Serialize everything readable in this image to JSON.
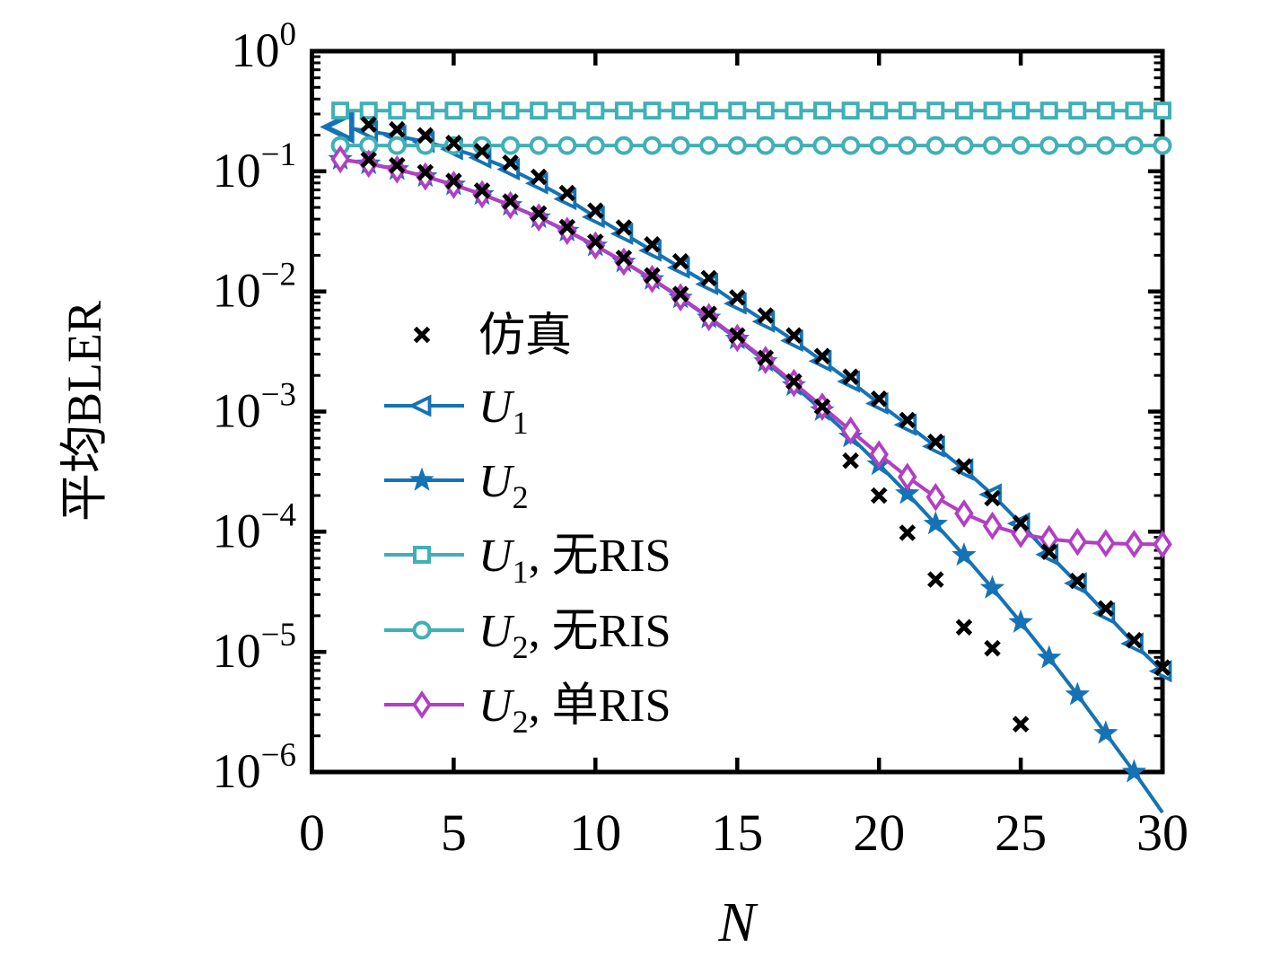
{
  "figure": {
    "background": "#ffffff"
  },
  "chart_data": {
    "type": "line",
    "title": "",
    "xlabel": "N",
    "ylabel": "平均BLER",
    "xlim": [
      0,
      30
    ],
    "yscale": "log",
    "ylim": [
      1e-06,
      1
    ],
    "grid": false,
    "legend_position": "inside center-left, no frame",
    "x_ticks": [
      0,
      5,
      10,
      15,
      20,
      25,
      30
    ],
    "y_tick_exponents": [
      0,
      -1,
      -2,
      -3,
      -4,
      -5,
      -6
    ],
    "colors": {
      "blue": "#1573b5",
      "teal": "#3fb0b6",
      "magenta": "#b23fc3",
      "black": "#000000"
    },
    "series": [
      {
        "id": "u2",
        "label": "U2",
        "color": "#1573b5",
        "marker": "star",
        "line": true,
        "x": [
          1,
          2,
          3,
          4,
          5,
          6,
          7,
          8,
          9,
          10,
          11,
          12,
          13,
          14,
          15,
          16,
          17,
          18,
          19,
          20,
          21,
          22,
          23,
          24,
          25,
          26,
          27,
          28,
          29,
          30
        ],
        "y": [
          0.126,
          0.1156,
          0.1036,
          0.0905,
          0.0771,
          0.0642,
          0.0521,
          0.0412,
          0.0318,
          0.024,
          0.0176,
          0.0126,
          0.00884,
          0.00603,
          0.00402,
          0.00261,
          0.00165,
          0.00102,
          0.000616,
          0.000362,
          0.000208,
          0.000116,
          6.36e-05,
          3.39e-05,
          1.76e-05,
          8.9e-06,
          4.4e-06,
          2.1e-06,
          1e-06,
          4.6e-07
        ]
      },
      {
        "id": "u1",
        "label": "U1",
        "color": "#1573b5",
        "marker": "triangle-left-open",
        "line": true,
        "x": [
          1,
          2,
          3,
          4,
          5,
          6,
          7,
          8,
          9,
          10,
          11,
          12,
          13,
          14,
          15,
          16,
          17,
          18,
          19,
          20,
          21,
          22,
          23,
          24,
          25,
          26,
          27,
          28,
          29,
          30
        ],
        "y": [
          0.234,
          0.216,
          0.197,
          0.176,
          0.153,
          0.13,
          0.104,
          0.0794,
          0.0589,
          0.0417,
          0.0302,
          0.0219,
          0.0158,
          0.0115,
          0.00794,
          0.00562,
          0.00389,
          0.00263,
          0.00178,
          0.00117,
          0.000776,
          0.000513,
          0.000331,
          0.000204,
          0.000117,
          6.46e-05,
          3.72e-05,
          2.09e-05,
          1.17e-05,
          6.9e-06
        ]
      },
      {
        "id": "u1_no_ris",
        "label": "U1, no RIS",
        "color": "#3fb0b6",
        "marker": "square-open",
        "line": true,
        "x": [
          1,
          2,
          3,
          4,
          5,
          6,
          7,
          8,
          9,
          10,
          11,
          12,
          13,
          14,
          15,
          16,
          17,
          18,
          19,
          20,
          21,
          22,
          23,
          24,
          25,
          26,
          27,
          28,
          29,
          30
        ],
        "y": [
          0.32,
          0.32,
          0.32,
          0.32,
          0.32,
          0.32,
          0.32,
          0.32,
          0.32,
          0.32,
          0.32,
          0.32,
          0.32,
          0.32,
          0.32,
          0.32,
          0.32,
          0.32,
          0.32,
          0.32,
          0.32,
          0.32,
          0.32,
          0.32,
          0.32,
          0.32,
          0.32,
          0.32,
          0.32,
          0.32
        ]
      },
      {
        "id": "u2_no_ris",
        "label": "U2, no RIS",
        "color": "#3fb0b6",
        "marker": "circle-open",
        "line": true,
        "x": [
          1,
          2,
          3,
          4,
          5,
          6,
          7,
          8,
          9,
          10,
          11,
          12,
          13,
          14,
          15,
          16,
          17,
          18,
          19,
          20,
          21,
          22,
          23,
          24,
          25,
          26,
          27,
          28,
          29,
          30
        ],
        "y": [
          0.164,
          0.164,
          0.164,
          0.164,
          0.164,
          0.164,
          0.164,
          0.164,
          0.164,
          0.164,
          0.164,
          0.164,
          0.164,
          0.164,
          0.164,
          0.164,
          0.164,
          0.164,
          0.164,
          0.164,
          0.164,
          0.164,
          0.164,
          0.164,
          0.164,
          0.164,
          0.164,
          0.164,
          0.164,
          0.164
        ]
      },
      {
        "id": "u2_single_ris",
        "label": "U2, single RIS",
        "color": "#b23fc3",
        "marker": "thin-diamond-open",
        "line": true,
        "x": [
          1,
          2,
          3,
          4,
          5,
          6,
          7,
          8,
          9,
          10,
          11,
          12,
          13,
          14,
          15,
          16,
          17,
          18,
          19,
          20,
          21,
          22,
          23,
          24,
          25,
          26,
          27,
          28,
          29,
          30
        ],
        "y": [
          0.126,
          0.1157,
          0.1037,
          0.0906,
          0.0772,
          0.0643,
          0.0522,
          0.0413,
          0.0319,
          0.0241,
          0.0177,
          0.0127,
          0.00892,
          0.00611,
          0.0041,
          0.00269,
          0.00173,
          0.0011,
          0.000694,
          0.00044,
          0.000286,
          0.000194,
          0.000142,
          0.000112,
          9.56e-05,
          8.69e-05,
          8.24e-05,
          8.01e-05,
          7.9e-05,
          7.85e-05
        ]
      },
      {
        "id": "sim_u1",
        "label": "simulation of U1",
        "color": "#000000",
        "marker": "x",
        "line": false,
        "x": [
          2,
          3,
          4,
          5,
          6,
          7,
          8,
          9,
          10,
          11,
          12,
          13,
          14,
          15,
          16,
          17,
          18,
          19,
          20,
          21,
          22,
          23,
          24,
          25,
          26,
          27,
          28,
          29,
          30
        ],
        "y": [
          0.245,
          0.223,
          0.199,
          0.172,
          0.147,
          0.118,
          0.09,
          0.066,
          0.047,
          0.034,
          0.0246,
          0.0178,
          0.0129,
          0.0089,
          0.0063,
          0.0043,
          0.0029,
          0.00195,
          0.00128,
          0.00085,
          0.00056,
          0.00035,
          0.00019,
          0.000118,
          6.8e-05,
          3.9e-05,
          2.3e-05,
          1.25e-05,
          7.4e-06
        ]
      },
      {
        "id": "sim_u2",
        "label": "simulation of U2",
        "color": "#000000",
        "marker": "x",
        "line": false,
        "x": [
          2,
          3,
          4,
          5,
          6,
          7,
          8,
          9,
          10,
          11,
          12,
          13,
          14,
          15,
          16,
          17,
          18,
          19,
          20,
          21,
          22,
          23,
          24,
          25
        ],
        "y": [
          0.125,
          0.112,
          0.098,
          0.083,
          0.069,
          0.056,
          0.0445,
          0.0343,
          0.0259,
          0.019,
          0.0136,
          0.0095,
          0.0065,
          0.0043,
          0.0028,
          0.00178,
          0.0011,
          0.00039,
          0.0002,
          9.8e-05,
          4e-05,
          1.6e-05,
          1.07e-05,
          2.5e-06
        ]
      }
    ],
    "legend": [
      {
        "marker": "x",
        "color": "#000000",
        "line": false,
        "label_parts": [
          {
            "t": "仿真",
            "s": "n"
          }
        ]
      },
      {
        "marker": "triangle-left-open",
        "color": "#1573b5",
        "line": true,
        "label_parts": [
          {
            "t": "U",
            "s": "i"
          },
          {
            "t": "1",
            "s": "sub"
          }
        ]
      },
      {
        "marker": "star",
        "color": "#1573b5",
        "line": true,
        "label_parts": [
          {
            "t": "U",
            "s": "i"
          },
          {
            "t": "2",
            "s": "sub"
          }
        ]
      },
      {
        "marker": "square-open",
        "color": "#3fb0b6",
        "line": true,
        "label_parts": [
          {
            "t": "U",
            "s": "i"
          },
          {
            "t": "1",
            "s": "sub"
          },
          {
            "t": ", 无RIS",
            "s": "n"
          }
        ]
      },
      {
        "marker": "circle-open",
        "color": "#3fb0b6",
        "line": true,
        "label_parts": [
          {
            "t": "U",
            "s": "i"
          },
          {
            "t": "2",
            "s": "sub"
          },
          {
            "t": ", 无RIS",
            "s": "n"
          }
        ]
      },
      {
        "marker": "thin-diamond-open",
        "color": "#b23fc3",
        "line": true,
        "label_parts": [
          {
            "t": "U",
            "s": "i"
          },
          {
            "t": "2",
            "s": "sub"
          },
          {
            "t": ", 单RIS",
            "s": "n"
          }
        ]
      }
    ]
  }
}
